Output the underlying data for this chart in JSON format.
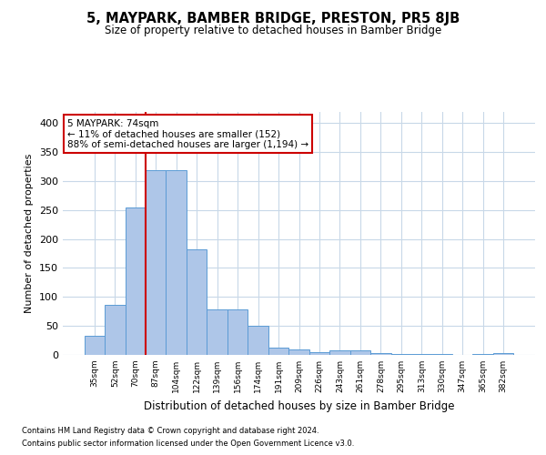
{
  "title": "5, MAYPARK, BAMBER BRIDGE, PRESTON, PR5 8JB",
  "subtitle": "Size of property relative to detached houses in Bamber Bridge",
  "xlabel": "Distribution of detached houses by size in Bamber Bridge",
  "ylabel": "Number of detached properties",
  "footnote1": "Contains HM Land Registry data © Crown copyright and database right 2024.",
  "footnote2": "Contains public sector information licensed under the Open Government Licence v3.0.",
  "annotation_title": "5 MAYPARK: 74sqm",
  "annotation_line1": "← 11% of detached houses are smaller (152)",
  "annotation_line2": "88% of semi-detached houses are larger (1,194) →",
  "bar_color": "#aec6e8",
  "bar_edge_color": "#5b9bd5",
  "ref_line_color": "#cc0000",
  "annotation_box_color": "#cc0000",
  "background_color": "#ffffff",
  "grid_color": "#c8d8e8",
  "categories": [
    "35sqm",
    "52sqm",
    "70sqm",
    "87sqm",
    "104sqm",
    "122sqm",
    "139sqm",
    "156sqm",
    "174sqm",
    "191sqm",
    "209sqm",
    "226sqm",
    "243sqm",
    "261sqm",
    "278sqm",
    "295sqm",
    "313sqm",
    "330sqm",
    "347sqm",
    "365sqm",
    "382sqm"
  ],
  "values": [
    33,
    87,
    255,
    318,
    318,
    182,
    78,
    78,
    50,
    12,
    10,
    5,
    8,
    8,
    3,
    1,
    1,
    1,
    0,
    1,
    3
  ],
  "ref_line_bin": 2,
  "ylim": [
    0,
    420
  ],
  "yticks": [
    0,
    50,
    100,
    150,
    200,
    250,
    300,
    350,
    400
  ]
}
